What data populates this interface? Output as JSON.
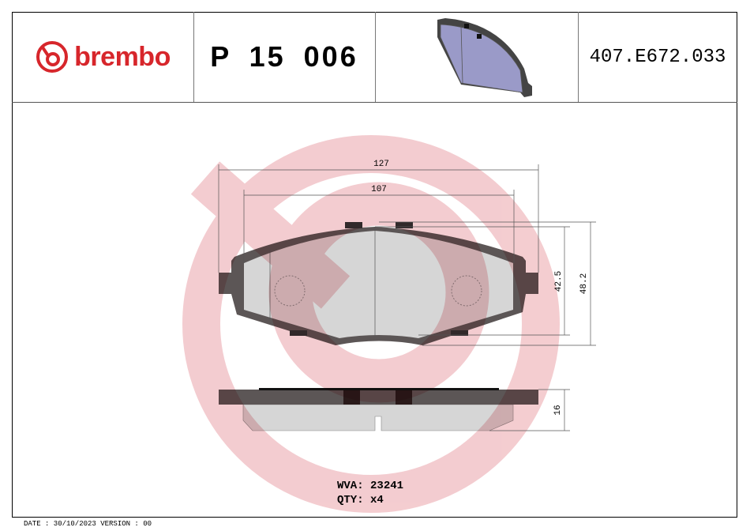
{
  "header": {
    "brand": "brembo",
    "part_number": "P 15 006",
    "code": "407.E672.033"
  },
  "dimensions": {
    "overall_width": "127",
    "inner_width": "107",
    "height_inner": "42.5",
    "height_outer": "48.2",
    "thickness": "16"
  },
  "info": {
    "wva_label": "WVA:",
    "wva": "23241",
    "qty_label": "QTY:",
    "qty": "x4"
  },
  "footer": "DATE : 30/10/2023 VERSION : 00",
  "colors": {
    "brand": "#d7262b",
    "watermark": "#f2c4c8",
    "plate": "#5c5656",
    "friction": "#d6d6d6",
    "render_pad": "#9a9ac8"
  }
}
